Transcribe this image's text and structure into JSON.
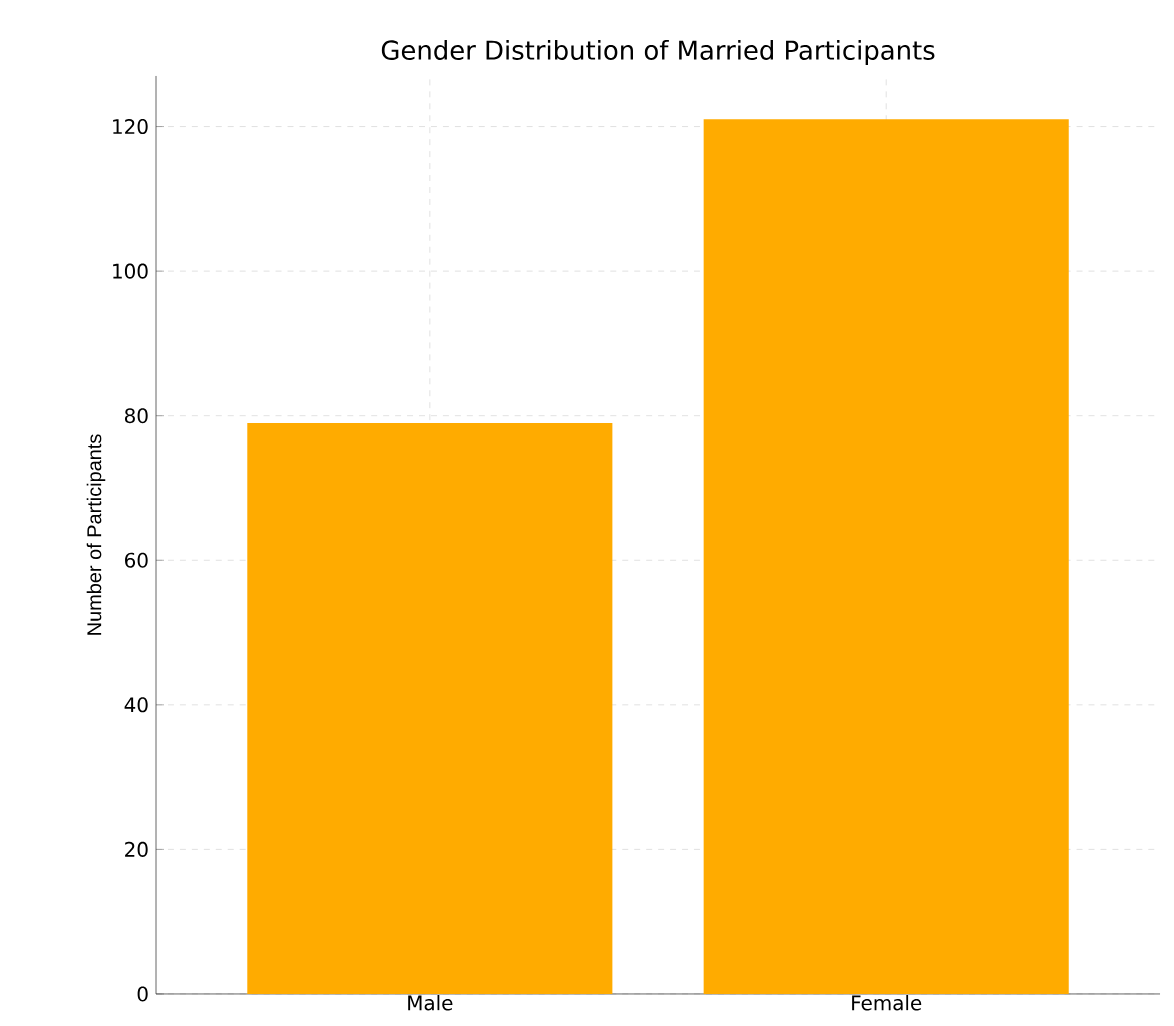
{
  "chart_data": {
    "type": "bar",
    "title": "Gender Distribution of Married Participants",
    "ylabel": "Number of Participants",
    "categories": [
      "Male",
      "Female"
    ],
    "values": [
      79,
      121
    ],
    "color": "#ffab00",
    "ylim": [
      0,
      127
    ],
    "yticks": [
      0,
      20,
      40,
      60,
      80,
      100,
      120
    ],
    "grid": true
  }
}
